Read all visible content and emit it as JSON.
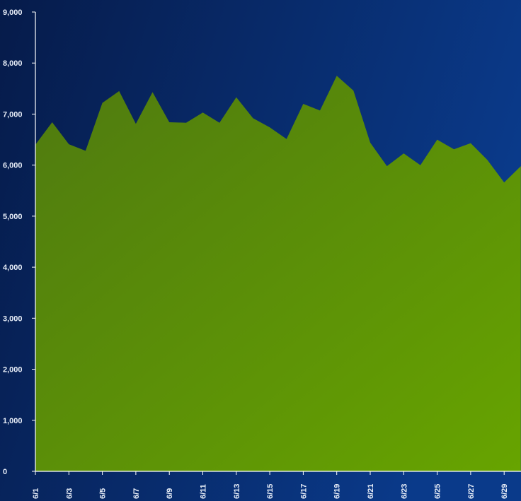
{
  "chart_data": {
    "type": "area",
    "title": "",
    "xlabel": "",
    "ylabel": "",
    "ylim": [
      0,
      9000
    ],
    "y_ticks": [
      0,
      1000,
      2000,
      3000,
      4000,
      5000,
      6000,
      7000,
      8000,
      9000
    ],
    "y_tick_labels": [
      "0",
      "1,000",
      "2,000",
      "3,000",
      "4,000",
      "5,000",
      "6,000",
      "7,000",
      "8,000",
      "9,000"
    ],
    "categories": [
      "6/1",
      "6/2",
      "6/3",
      "6/4",
      "6/5",
      "6/6",
      "6/7",
      "6/8",
      "6/9",
      "6/10",
      "6/11",
      "6/12",
      "6/13",
      "6/14",
      "6/15",
      "6/16",
      "6/17",
      "6/18",
      "6/19",
      "6/20",
      "6/21",
      "6/22",
      "6/23",
      "6/24",
      "6/25",
      "6/26",
      "6/27",
      "6/28",
      "6/29",
      "6/30"
    ],
    "x_tick_labels": [
      "6/1",
      "6/3",
      "6/5",
      "6/7",
      "6/9",
      "6/11",
      "6/13",
      "6/15",
      "6/17",
      "6/19",
      "6/21",
      "6/23",
      "6/25",
      "6/27",
      "6/29"
    ],
    "values": [
      6400,
      6840,
      6410,
      6280,
      7220,
      7450,
      6810,
      7430,
      6840,
      6830,
      7030,
      6830,
      7330,
      6920,
      6740,
      6510,
      7200,
      7070,
      7750,
      7460,
      6440,
      5980,
      6230,
      6000,
      6500,
      6310,
      6430,
      6100,
      5660,
      5980
    ],
    "grid": false,
    "legend": "none",
    "colors": {
      "background_top": "#061b4a",
      "background_bottom": "#0a3a8a",
      "area_top": "#4f7a10",
      "area_bottom": "#67a400",
      "axis": "#ffffff",
      "text": "#e8eef8"
    }
  }
}
